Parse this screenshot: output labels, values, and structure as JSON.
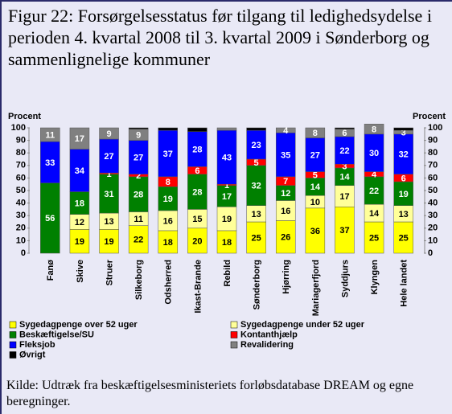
{
  "chart_data": {
    "type": "stacked_bar",
    "title": "Figur 22: Forsørgelsesstatus før tilgang til ledighedsydelse i perioden 4. kvartal 2008 til 3. kvartal 2009 i Sønderborg og sammenlignelige kommuner",
    "y_label": "Procent",
    "source": "Kilde: Udtræk fra beskæftigelsesministeriets forløbsdatabase DREAM og egne beregninger.",
    "categories": [
      "Fanø",
      "Skive",
      "Struer",
      "Silkeborg",
      "Odsherred",
      "Ikast-Brande",
      "Rebild",
      "Sønderborg",
      "Hjørring",
      "Mariagerfjord",
      "Syddjurs",
      "Klyngen",
      "Hele landet"
    ],
    "series": [
      {
        "name": "Sygedagpenge over 52 uger",
        "color": "#ffff00",
        "values": [
          0,
          19,
          19,
          22,
          18,
          20,
          18,
          25,
          26,
          36,
          37,
          25,
          25
        ]
      },
      {
        "name": "Sygedagpenge under 52 uger",
        "color": "#ffff99",
        "values": [
          0,
          12,
          13,
          11,
          16,
          15,
          19,
          13,
          16,
          10,
          17,
          14,
          13
        ]
      },
      {
        "name": "Beskæftigelse/SU",
        "color": "#008000",
        "values": [
          56,
          18,
          31,
          28,
          19,
          28,
          17,
          32,
          12,
          14,
          14,
          22,
          19
        ]
      },
      {
        "name": "Kontanthjælp",
        "color": "#ff0000",
        "values": [
          0,
          0,
          1,
          2,
          8,
          6,
          1,
          5,
          7,
          5,
          3,
          4,
          6
        ]
      },
      {
        "name": "Fleksjob",
        "color": "#0000ff",
        "values": [
          33,
          34,
          27,
          27,
          37,
          28,
          43,
          23,
          35,
          27,
          22,
          30,
          32
        ]
      },
      {
        "name": "Revalidering",
        "color": "#808080",
        "values": [
          11,
          17,
          9,
          9,
          0,
          0,
          2,
          0,
          4,
          8,
          6,
          8,
          3
        ]
      },
      {
        "name": "Øvrigt",
        "color": "#000000",
        "values": [
          0,
          0,
          0,
          1,
          2,
          3,
          0,
          2,
          0,
          0,
          1,
          0,
          2
        ]
      }
    ],
    "ylim": [
      0,
      100
    ],
    "yticks": [
      0,
      10,
      20,
      30,
      40,
      50,
      60,
      70,
      80,
      90,
      100
    ]
  }
}
